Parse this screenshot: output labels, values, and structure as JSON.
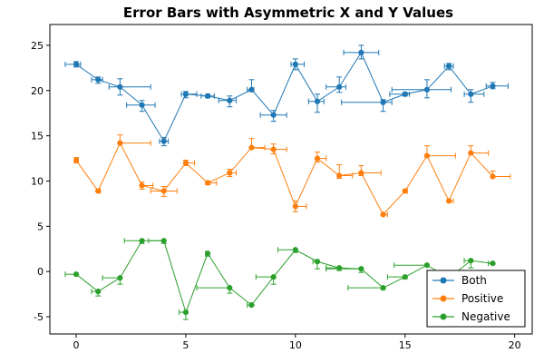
{
  "chart_data": {
    "type": "scatter",
    "title": "Error Bars with Asymmetric X and Y Values",
    "xlabel": "",
    "ylabel": "",
    "xlim": [
      -1.2,
      20.8
    ],
    "ylim": [
      -6.9,
      27.3
    ],
    "x_ticks": [
      0,
      5,
      10,
      15,
      20
    ],
    "y_ticks": [
      -5,
      0,
      5,
      10,
      15,
      20,
      25
    ],
    "grid": false,
    "legend_position": "bottom-right",
    "series": [
      {
        "name": "Both",
        "color": "#1f77b4",
        "marker": "circle",
        "x": [
          0,
          1,
          2,
          3,
          4,
          5,
          6,
          7,
          8,
          9,
          10,
          11,
          12,
          13,
          14,
          15,
          16,
          17,
          18,
          19
        ],
        "y": [
          22.9,
          21.2,
          20.4,
          18.4,
          14.4,
          19.6,
          19.4,
          18.9,
          20.1,
          17.3,
          22.9,
          18.8,
          20.4,
          24.2,
          18.7,
          19.6,
          20.1,
          22.7,
          19.6,
          20.5
        ],
        "x_err_minus": [
          0.5,
          0.3,
          0.5,
          0.7,
          0.2,
          0.2,
          0.3,
          0.5,
          0.2,
          0.6,
          0.2,
          0.4,
          0.6,
          0.8,
          1.9,
          0.7,
          1.6,
          0.2,
          0.3,
          0.3
        ],
        "x_err_plus": [
          0.2,
          0.2,
          1.4,
          0.6,
          0.2,
          0.5,
          0.3,
          0.3,
          0.1,
          0.6,
          0.4,
          0.3,
          0.3,
          0.8,
          0.4,
          0.2,
          1.1,
          0.2,
          0.6,
          0.7
        ],
        "y_err_minus": [
          0.3,
          0.4,
          0.9,
          0.7,
          0.5,
          0.4,
          0.2,
          0.7,
          0.2,
          0.7,
          0.6,
          1.2,
          0.6,
          0.7,
          1.0,
          0.2,
          0.9,
          0.4,
          0.9,
          0.3
        ],
        "y_err_plus": [
          0.3,
          0.3,
          0.9,
          0.5,
          0.4,
          0.3,
          0.2,
          0.5,
          1.1,
          0.5,
          0.6,
          0.8,
          1.1,
          0.8,
          0.3,
          0.2,
          1.1,
          0.3,
          0.5,
          0.4
        ]
      },
      {
        "name": "Positive",
        "color": "#ff7f0e",
        "marker": "circle",
        "x": [
          0,
          1,
          2,
          3,
          4,
          5,
          6,
          7,
          8,
          9,
          10,
          11,
          12,
          13,
          14,
          15,
          16,
          17,
          18,
          19
        ],
        "y": [
          12.3,
          8.9,
          14.2,
          9.5,
          8.9,
          12.0,
          9.8,
          10.9,
          13.7,
          13.5,
          7.2,
          12.5,
          10.6,
          10.9,
          6.3,
          8.9,
          12.8,
          7.8,
          13.1,
          10.5
        ],
        "x_err_minus": [
          0,
          0,
          0,
          0,
          0.6,
          0,
          0,
          0,
          0,
          0,
          0,
          0,
          0,
          0,
          0,
          0,
          0,
          0,
          0,
          0
        ],
        "x_err_plus": [
          0.1,
          0.1,
          1.4,
          0.5,
          0.6,
          0.4,
          0.4,
          0.3,
          0.6,
          0.6,
          0.5,
          0.4,
          0.6,
          0.9,
          0.2,
          0.1,
          1.3,
          0.2,
          0.8,
          0.8
        ],
        "y_err_minus": [
          0.3,
          0.1,
          0.1,
          0.4,
          0.6,
          0.3,
          0.2,
          0.4,
          0.1,
          0.5,
          0.6,
          0.4,
          0.3,
          0.3,
          0.1,
          0.1,
          0.1,
          0.1,
          0.1,
          0.1
        ],
        "y_err_plus": [
          0.3,
          0.1,
          0.9,
          0.4,
          0.5,
          0.3,
          0.2,
          0.4,
          1.0,
          0.6,
          0.6,
          0.7,
          1.2,
          0.8,
          0.1,
          0.1,
          1.1,
          0.1,
          0.8,
          0.6
        ]
      },
      {
        "name": "Negative",
        "color": "#2ca02c",
        "marker": "circle",
        "x": [
          0,
          1,
          2,
          3,
          4,
          5,
          6,
          7,
          8,
          9,
          10,
          11,
          12,
          13,
          14,
          15,
          16,
          17,
          18,
          19
        ],
        "y": [
          -0.3,
          -2.2,
          -0.7,
          3.4,
          3.4,
          -4.5,
          2.0,
          -1.8,
          -3.7,
          -0.6,
          2.4,
          1.1,
          0.4,
          0.3,
          -1.8,
          -0.6,
          0.7,
          -0.7,
          1.2,
          0.9
        ],
        "x_err_minus": [
          0.5,
          0.3,
          0.8,
          0.8,
          0.7,
          0.3,
          0.1,
          1.5,
          0.2,
          0.8,
          0.8,
          0.2,
          0.6,
          1.6,
          1.6,
          0.8,
          1.5,
          0.2,
          0.3,
          0.2
        ],
        "x_err_plus": [
          0,
          0,
          0,
          0,
          0,
          0,
          0,
          0,
          0,
          0,
          0,
          0,
          0,
          0,
          0,
          0,
          0,
          0,
          0,
          0
        ],
        "y_err_minus": [
          0.1,
          0.5,
          0.7,
          0.3,
          0.3,
          0.8,
          0.3,
          0.6,
          0.1,
          0.8,
          0.3,
          0.8,
          0.3,
          0.4,
          0.2,
          0.2,
          0.1,
          0.1,
          0.8,
          0.1
        ],
        "y_err_plus": [
          0,
          0,
          0,
          0,
          0,
          0,
          0,
          0,
          0,
          0,
          0,
          0,
          0,
          0,
          0,
          0,
          0,
          0,
          0,
          0
        ]
      }
    ]
  }
}
